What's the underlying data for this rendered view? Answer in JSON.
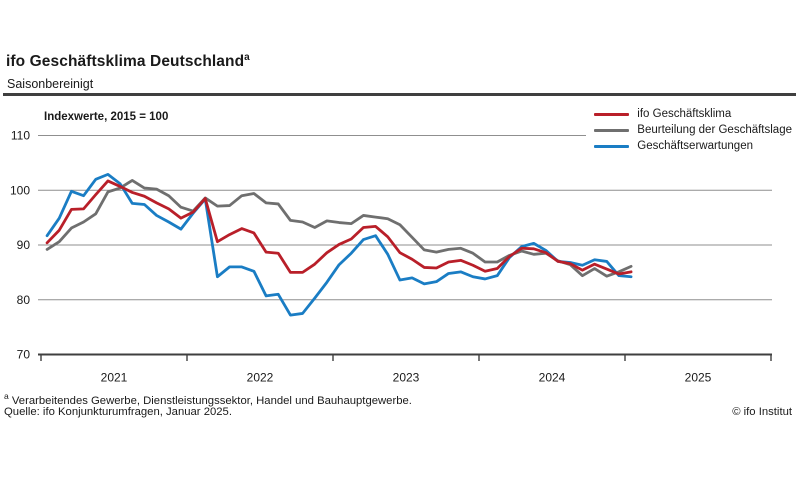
{
  "header": {
    "title": "ifo Geschäftsklima Deutschland",
    "title_superscript": "a",
    "subtitle": "Saisonbereinigt"
  },
  "chart_data": {
    "type": "line",
    "title": "ifo Geschäftsklima Deutschland (saisonbereinigt)",
    "note": "Indexwerte, 2015 = 100",
    "ylabel": "",
    "xlabel": "",
    "ylim": [
      70,
      110
    ],
    "y_ticks": [
      110,
      100,
      90,
      80,
      70
    ],
    "x_axis_year_labels": [
      "2021",
      "2022",
      "2023",
      "2024",
      "2025"
    ],
    "x_range_months": [
      "2021-01",
      "2026-01"
    ],
    "grid": "horizontal",
    "legend_position": "top-right",
    "frequency": "monthly",
    "months": [
      "2021-01",
      "2021-02",
      "2021-03",
      "2021-04",
      "2021-05",
      "2021-06",
      "2021-07",
      "2021-08",
      "2021-09",
      "2021-10",
      "2021-11",
      "2021-12",
      "2022-01",
      "2022-02",
      "2022-03",
      "2022-04",
      "2022-05",
      "2022-06",
      "2022-07",
      "2022-08",
      "2022-09",
      "2022-10",
      "2022-11",
      "2022-12",
      "2023-01",
      "2023-02",
      "2023-03",
      "2023-04",
      "2023-05",
      "2023-06",
      "2023-07",
      "2023-08",
      "2023-09",
      "2023-10",
      "2023-11",
      "2023-12",
      "2024-01",
      "2024-02",
      "2024-03",
      "2024-04",
      "2024-05",
      "2024-06",
      "2024-07",
      "2024-08",
      "2024-09",
      "2024-10",
      "2024-11",
      "2024-12",
      "2025-01"
    ],
    "series": [
      {
        "name": "ifo Geschäftsklima",
        "color": "#b91f29",
        "values": [
          90.4,
          92.7,
          96.5,
          96.6,
          99.2,
          101.7,
          100.7,
          99.6,
          98.9,
          97.7,
          96.6,
          94.9,
          96.0,
          98.5,
          90.6,
          91.9,
          93.0,
          92.2,
          88.7,
          88.5,
          85.0,
          85.0,
          86.5,
          88.6,
          90.1,
          91.1,
          93.2,
          93.4,
          91.5,
          88.6,
          87.4,
          85.9,
          85.8,
          86.9,
          87.2,
          86.3,
          85.2,
          85.7,
          87.9,
          89.4,
          89.3,
          88.6,
          87.0,
          86.6,
          85.4,
          86.5,
          85.6,
          84.7,
          85.1
        ]
      },
      {
        "name": "Beurteilung der Geschäftslage",
        "color": "#6f6f6f",
        "values": [
          89.2,
          90.6,
          93.1,
          94.2,
          95.7,
          99.7,
          100.4,
          101.8,
          100.4,
          100.2,
          99.0,
          96.9,
          96.2,
          98.6,
          97.1,
          97.2,
          99.0,
          99.4,
          97.7,
          97.5,
          94.5,
          94.2,
          93.2,
          94.4,
          94.1,
          93.9,
          95.4,
          95.1,
          94.8,
          93.7,
          91.4,
          89.1,
          88.7,
          89.2,
          89.4,
          88.5,
          86.9,
          86.9,
          88.1,
          88.9,
          88.3,
          88.5,
          87.1,
          86.4,
          84.4,
          85.7,
          84.3,
          85.1,
          86.1
        ]
      },
      {
        "name": "Geschäftserwartungen",
        "color": "#1a7dc4",
        "values": [
          91.7,
          94.9,
          99.8,
          99.0,
          102.0,
          102.9,
          101.2,
          97.6,
          97.4,
          95.4,
          94.2,
          92.9,
          95.8,
          98.4,
          84.2,
          86.0,
          86.0,
          85.2,
          80.7,
          81.0,
          77.2,
          77.5,
          80.3,
          83.2,
          86.4,
          88.5,
          91.0,
          91.7,
          88.3,
          83.6,
          84.0,
          82.9,
          83.3,
          84.8,
          85.1,
          84.2,
          83.8,
          84.4,
          87.7,
          89.7,
          90.3,
          89.0,
          87.0,
          86.8,
          86.3,
          87.3,
          87.0,
          84.4,
          84.2
        ]
      }
    ],
    "colors": {
      "gridline": "#8f8f8f",
      "axis": "#3f3f3f",
      "text": "#1a1a1a"
    }
  },
  "footer": {
    "footnote_marker": "a",
    "footnote": "Verarbeitendes Gewerbe, Dienstleistungssektor, Handel und Bauhauptgewerbe.",
    "source": "Quelle: ifo Konjunkturumfragen, Januar 2025.",
    "copyright": "© ifo Institut"
  }
}
